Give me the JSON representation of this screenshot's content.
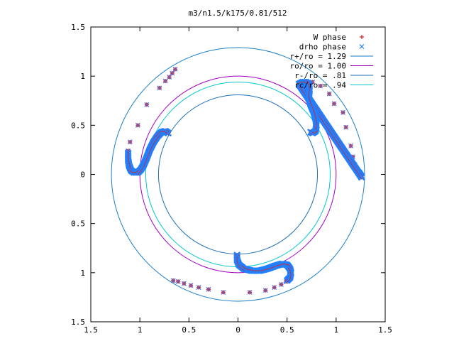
{
  "chart_data": {
    "type": "scatter",
    "title": "m3/n1.5/k175/0.81/512",
    "xlabel": "",
    "ylabel": "",
    "xlim": [
      -1.5,
      1.5
    ],
    "ylim": [
      -1.5,
      1.5
    ],
    "x_tick_values": [
      -1.5,
      -1,
      -0.5,
      0,
      0.5,
      1,
      1.5
    ],
    "x_tick_labels": [
      "1.5",
      "1",
      "0.5",
      "0",
      "0.5",
      "1",
      "1.5"
    ],
    "y_tick_values": [
      1.5,
      1,
      0.5,
      0,
      -0.5,
      -1,
      -1.5
    ],
    "y_tick_labels": [
      "1.5",
      "1",
      "0.5",
      "0",
      "0.5",
      "1",
      "1.5"
    ],
    "grid": false,
    "legend_position": "top-right",
    "circles": [
      {
        "name": "r+/ro = 1.29",
        "r": 1.29,
        "color": "#1a7ec8"
      },
      {
        "name": "ro/ro = 1.00",
        "r": 1.0,
        "color": "#a000c0"
      },
      {
        "name": "r-/ro = .81",
        "r": 0.81,
        "color": "#1e6fb8"
      },
      {
        "name": "rc/ro = .94",
        "r": 0.94,
        "color": "#00c8d0"
      }
    ],
    "series": [
      {
        "name": "W phase",
        "marker": "+",
        "color": "#e02020"
      },
      {
        "name": "drho phase",
        "marker": "x",
        "color": "#2080ff"
      }
    ],
    "arms": [
      {
        "coarse": [
          [
            -0.64,
            1.07
          ],
          [
            -0.67,
            1.03
          ],
          [
            -0.7,
            0.99
          ],
          [
            -0.74,
            0.95
          ],
          [
            -0.8,
            0.88
          ],
          [
            -0.93,
            0.71
          ],
          [
            -1.02,
            0.5
          ],
          [
            -1.1,
            0.33
          ],
          [
            -1.12,
            0.24
          ]
        ],
        "dense": [
          [
            -1.12,
            0.22
          ],
          [
            -1.12,
            0.15
          ],
          [
            -1.11,
            0.09
          ],
          [
            -1.09,
            0.04
          ],
          [
            -1.06,
            0.02
          ],
          [
            -1.02,
            0.02
          ],
          [
            -0.99,
            0.05
          ],
          [
            -0.96,
            0.1
          ],
          [
            -0.93,
            0.17
          ],
          [
            -0.9,
            0.25
          ],
          [
            -0.86,
            0.33
          ],
          [
            -0.82,
            0.39
          ],
          [
            -0.78,
            0.43
          ],
          [
            -0.74,
            0.44
          ],
          [
            -0.71,
            0.42
          ]
        ]
      },
      {
        "coarse": [
          [
            -0.66,
            -1.08
          ],
          [
            -0.61,
            -1.09
          ],
          [
            -0.55,
            -1.11
          ],
          [
            -0.48,
            -1.13
          ],
          [
            -0.4,
            -1.15
          ],
          [
            -0.3,
            -1.17
          ],
          [
            -0.15,
            -1.2
          ],
          [
            0.12,
            -1.2
          ],
          [
            0.28,
            -1.18
          ],
          [
            0.37,
            -1.15
          ],
          [
            0.44,
            -1.12
          ],
          [
            0.49,
            -1.09
          ]
        ],
        "dense": [
          [
            0.5,
            -1.08
          ],
          [
            0.53,
            -1.05
          ],
          [
            0.54,
            -1.0
          ],
          [
            0.53,
            -0.96
          ],
          [
            0.5,
            -0.92
          ],
          [
            0.45,
            -0.91
          ],
          [
            0.38,
            -0.93
          ],
          [
            0.3,
            -0.96
          ],
          [
            0.22,
            -0.98
          ],
          [
            0.14,
            -0.98
          ],
          [
            0.06,
            -0.96
          ],
          [
            0.01,
            -0.92
          ],
          [
            -0.01,
            -0.87
          ],
          [
            -0.01,
            -0.82
          ]
        ]
      },
      {
        "coarse": [
          [
            0.76,
            0.94
          ],
          [
            0.84,
            0.9
          ],
          [
            0.93,
            0.82
          ],
          [
            0.98,
            0.72
          ],
          [
            1.07,
            0.63
          ],
          [
            1.1,
            0.48
          ],
          [
            1.15,
            0.29
          ],
          [
            1.17,
            0.18
          ],
          [
            1.19,
            0.1
          ],
          [
            1.21,
            0.05
          ]
        ],
        "dense": [
          [
            1.23,
            0.02
          ],
          [
            1.25,
            -0.01
          ],
          [
            1.26,
            -0.03
          ],
          [
            0.62,
            0.92
          ],
          [
            0.66,
            0.94
          ],
          [
            0.69,
            0.94
          ],
          [
            0.72,
            0.92
          ],
          [
            0.73,
            0.86
          ],
          [
            0.72,
            0.78
          ],
          [
            0.74,
            0.71
          ],
          [
            0.77,
            0.64
          ],
          [
            0.79,
            0.57
          ],
          [
            0.8,
            0.5
          ],
          [
            0.79,
            0.44
          ],
          [
            0.76,
            0.42
          ],
          [
            0.74,
            0.43
          ]
        ]
      }
    ]
  }
}
